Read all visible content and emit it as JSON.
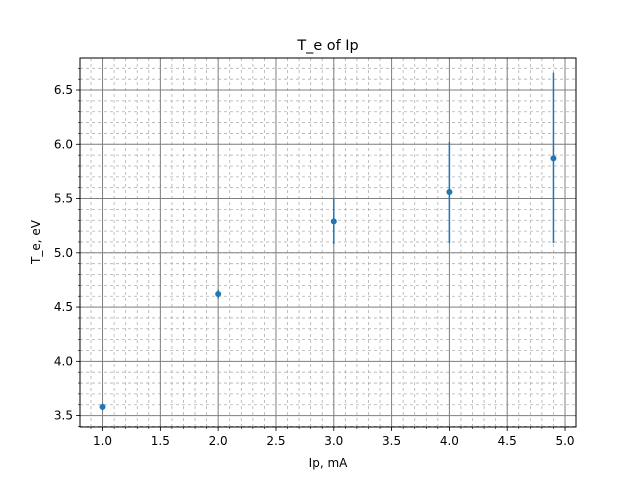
{
  "chart_data": {
    "type": "scatter",
    "title": "T_e of Ip",
    "xlabel": "Ip, mA",
    "ylabel": "T_e, eV",
    "xlim": [
      0.805,
      5.095
    ],
    "ylim": [
      3.395,
      6.795
    ],
    "x_ticks": [
      1.0,
      1.5,
      2.0,
      2.5,
      3.0,
      3.5,
      4.0,
      4.5,
      5.0
    ],
    "x_tick_labels": [
      "1.0",
      "1.5",
      "2.0",
      "2.5",
      "3.0",
      "3.5",
      "4.0",
      "4.5",
      "5.0"
    ],
    "y_ticks": [
      3.5,
      4.0,
      4.5,
      5.0,
      5.5,
      6.0,
      6.5
    ],
    "y_tick_labels": [
      "3.5",
      "4.0",
      "4.5",
      "5.0",
      "5.5",
      "6.0",
      "6.5"
    ],
    "x_minor_step": 0.1,
    "y_minor_step": 0.1,
    "grid": {
      "major": true,
      "minor": true
    },
    "series": [
      {
        "x": [
          1.0,
          2.0,
          3.0,
          4.0,
          4.9
        ],
        "y": [
          3.58,
          4.62,
          5.29,
          5.56,
          5.87
        ],
        "yerr_low": [
          3.55,
          4.58,
          5.08,
          5.09,
          5.09
        ],
        "yerr_high": [
          3.61,
          4.66,
          5.5,
          6.02,
          6.66
        ],
        "color": "#1f77b4"
      }
    ]
  }
}
